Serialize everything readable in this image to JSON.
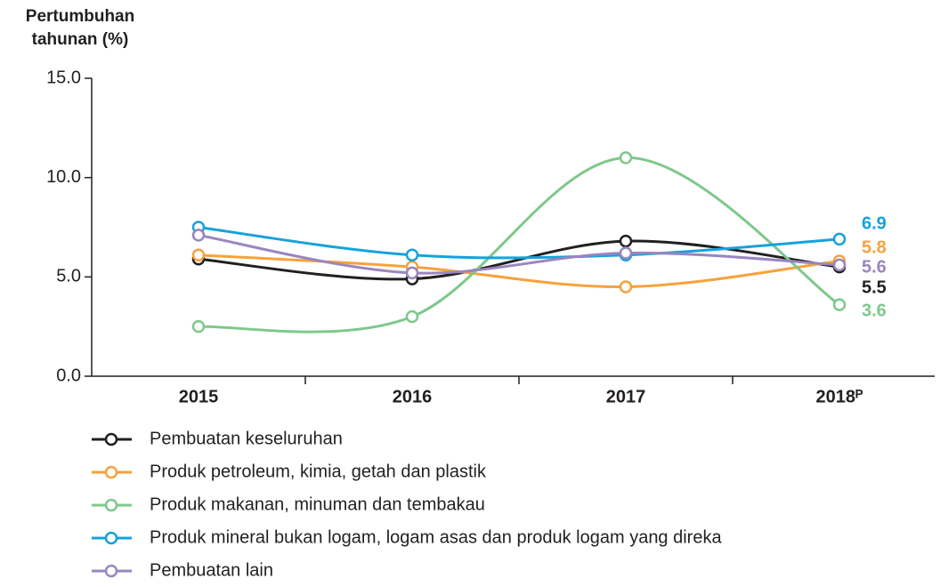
{
  "chart_data": {
    "type": "line",
    "y_label": "Pertumbuhan tahunan (%)",
    "categories": [
      "2015",
      "2016",
      "2017",
      "2018ᴾ"
    ],
    "ylim": [
      0,
      15
    ],
    "yticks": [
      {
        "value": 0,
        "label": "0.0"
      },
      {
        "value": 5,
        "label": "5.0"
      },
      {
        "value": 10,
        "label": "10.0"
      },
      {
        "value": 15,
        "label": "15.0"
      }
    ],
    "series": [
      {
        "name": "Pembuatan keseluruhan",
        "color": "#231f20",
        "values": [
          5.9,
          4.9,
          6.8,
          5.5
        ]
      },
      {
        "name": "Produk petroleum, kimia, getah dan plastik",
        "color": "#f6a23d",
        "values": [
          6.1,
          5.5,
          4.5,
          5.8
        ]
      },
      {
        "name": "Produk makanan, minuman dan tembakau",
        "color": "#7ec88b",
        "values": [
          2.5,
          3.0,
          11.0,
          3.6
        ]
      },
      {
        "name": "Produk mineral bukan logam, logam asas dan produk logam yang direka",
        "color": "#16a2dc",
        "values": [
          7.5,
          6.1,
          6.1,
          6.9
        ]
      },
      {
        "name": "Pembuatan lain",
        "color": "#9a85c0",
        "values": [
          7.1,
          5.2,
          6.2,
          5.6
        ]
      }
    ]
  }
}
